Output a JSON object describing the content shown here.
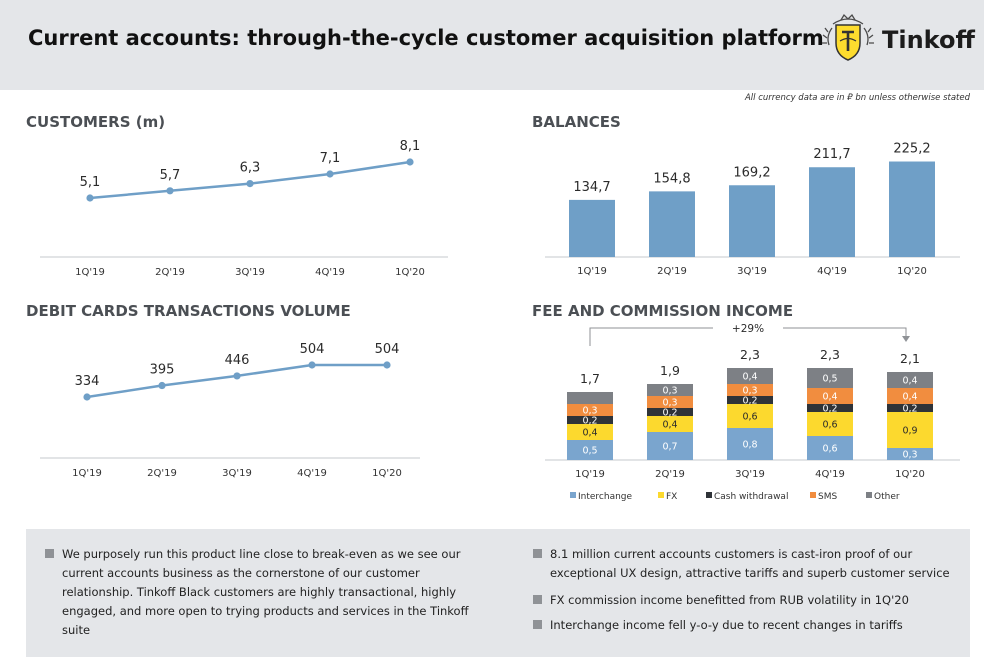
{
  "header": {
    "title": "Current accounts: through-the-cycle customer acquisition platform",
    "brand": "Tinkoff"
  },
  "note": "All currency data are in ₽ bn unless otherwise stated",
  "colors": {
    "line": "#6f9fc7",
    "bar": "#6f9fc7",
    "interchange": "#7aa5ce",
    "fx": "#fcd92e",
    "cash": "#2f3338",
    "sms": "#f18d3f",
    "other": "#7d8085"
  },
  "chart_data": [
    {
      "id": "customers",
      "type": "line",
      "title": "CUSTOMERS (m)",
      "categories": [
        "1Q'19",
        "2Q'19",
        "3Q'19",
        "4Q'19",
        "1Q'20"
      ],
      "values": [
        5.1,
        5.7,
        6.3,
        7.1,
        8.1
      ],
      "labels": [
        "5,1",
        "5,7",
        "6,3",
        "7,1",
        "8,1"
      ]
    },
    {
      "id": "balances",
      "type": "bar",
      "title": "BALANCES",
      "categories": [
        "1Q'19",
        "2Q'19",
        "3Q'19",
        "4Q'19",
        "1Q'20"
      ],
      "values": [
        134.7,
        154.8,
        169.2,
        211.7,
        225.2
      ],
      "labels": [
        "134,7",
        "154,8",
        "169,2",
        "211,7",
        "225,2"
      ]
    },
    {
      "id": "debit",
      "type": "line",
      "title": "DEBIT CARDS TRANSACTIONS VOLUME",
      "categories": [
        "1Q'19",
        "2Q'19",
        "3Q'19",
        "4Q'19",
        "1Q'20"
      ],
      "values": [
        334,
        395,
        446,
        504,
        504
      ],
      "labels": [
        "334",
        "395",
        "446",
        "504",
        "504"
      ]
    },
    {
      "id": "fees",
      "type": "bar",
      "stacked": true,
      "title": "FEE AND COMMISSION INCOME",
      "categories": [
        "1Q'19",
        "2Q'19",
        "3Q'19",
        "4Q'19",
        "1Q'20"
      ],
      "totals": [
        1.7,
        1.9,
        2.3,
        2.3,
        2.1
      ],
      "total_labels": [
        "1,7",
        "1,9",
        "2,3",
        "2,3",
        "2,1"
      ],
      "growth_label": "+29%",
      "legend_position": "bottom",
      "series": [
        {
          "name": "Interchange",
          "key": "interchange",
          "values": [
            0.5,
            0.7,
            0.8,
            0.6,
            0.3
          ],
          "labels": [
            "0,5",
            "0,7",
            "0,8",
            "0,6",
            "0,3"
          ]
        },
        {
          "name": "FX",
          "key": "fx",
          "values": [
            0.4,
            0.4,
            0.6,
            0.6,
            0.9
          ],
          "labels": [
            "0,4",
            "0,4",
            "0,6",
            "0,6",
            "0,9"
          ]
        },
        {
          "name": "Cash withdrawal",
          "key": "cash",
          "values": [
            0.2,
            0.2,
            0.2,
            0.2,
            0.2
          ],
          "labels": [
            "0,2",
            "0,2",
            "0,2",
            "0,2",
            "0,2"
          ]
        },
        {
          "name": "SMS",
          "key": "sms",
          "values": [
            0.3,
            0.3,
            0.3,
            0.4,
            0.4
          ],
          "labels": [
            "0,3",
            "0,3",
            "0,3",
            "0,4",
            "0,4"
          ]
        },
        {
          "name": "Other",
          "key": "other",
          "values": [
            0.3,
            0.3,
            0.4,
            0.5,
            0.4
          ],
          "labels": [
            "",
            "0,3",
            "0,4",
            "0,5",
            "0,4"
          ]
        }
      ]
    }
  ],
  "footer": {
    "left": "We purposely run this product line close to break-even as we see our current accounts business as the cornerstone of our customer relationship. Tinkoff Black customers are highly transactional, highly engaged, and more open to trying products and services in the Tinkoff suite",
    "right": [
      "8.1 million current accounts customers is cast-iron proof of our exceptional UX design, attractive tariffs and superb customer service",
      "FX commission income benefitted from RUB volatility in 1Q'20",
      "Interchange income fell y-o-y due to recent changes in tariffs"
    ]
  }
}
